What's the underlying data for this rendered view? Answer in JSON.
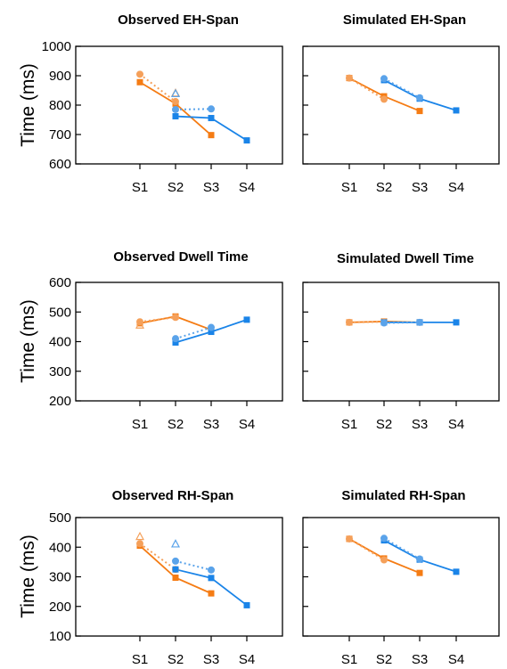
{
  "figure": {
    "row_ylabels": [
      "Time (ms)",
      "Time (ms)",
      "Time (ms)"
    ]
  },
  "colors": {
    "orange": "#f57c14",
    "orange_light": "#f5a05a",
    "blue": "#1a84e8",
    "blue_light": "#5aa3ea"
  },
  "chart_data": [
    {
      "type": "line",
      "title": "Observed EH-Span",
      "ylabel": "Time (ms)",
      "xlabel": "",
      "categories": [
        "S1",
        "S2",
        "S3",
        "S4"
      ],
      "ylim": [
        600,
        1000
      ],
      "yticks": [
        600,
        700,
        800,
        900,
        1000
      ],
      "series": [
        {
          "color": "orange",
          "marker": "square",
          "style": "solid",
          "values": [
            878,
            805,
            698,
            null
          ]
        },
        {
          "color": "orange",
          "marker": "circle",
          "style": "dotted",
          "values": [
            905,
            812,
            null,
            null
          ]
        },
        {
          "color": "orange",
          "marker": "triangle",
          "style": "none",
          "values": [
            null,
            840,
            null,
            null
          ]
        },
        {
          "color": "blue",
          "marker": "square",
          "style": "solid",
          "values": [
            null,
            762,
            756,
            680
          ]
        },
        {
          "color": "blue",
          "marker": "circle",
          "style": "dotted",
          "values": [
            null,
            785,
            787,
            null
          ]
        },
        {
          "color": "blue",
          "marker": "triangle",
          "style": "none",
          "values": [
            null,
            838,
            null,
            null
          ]
        }
      ]
    },
    {
      "type": "line",
      "title": "Simulated EH-Span",
      "xlabel": "",
      "categories": [
        "S1",
        "S2",
        "S3",
        "S4"
      ],
      "ylim": [
        600,
        1000
      ],
      "yticks": [
        600,
        700,
        800,
        900,
        1000
      ],
      "series": [
        {
          "color": "orange",
          "marker": "square",
          "style": "solid",
          "values": [
            892,
            830,
            780,
            null
          ]
        },
        {
          "color": "orange",
          "marker": "circle",
          "style": "dotted",
          "values": [
            892,
            820,
            null,
            null
          ]
        },
        {
          "color": "blue",
          "marker": "square",
          "style": "solid",
          "values": [
            null,
            885,
            822,
            782
          ]
        },
        {
          "color": "blue",
          "marker": "circle",
          "style": "dotted",
          "values": [
            null,
            890,
            825,
            null
          ]
        }
      ]
    },
    {
      "type": "line",
      "title": "Observed Dwell Time",
      "ylabel": "Time (ms)",
      "xlabel": "",
      "categories": [
        "S1",
        "S2",
        "S3",
        "S4"
      ],
      "ylim": [
        200,
        600
      ],
      "yticks": [
        200,
        300,
        400,
        500,
        600
      ],
      "series": [
        {
          "color": "orange",
          "marker": "square",
          "style": "solid",
          "values": [
            462,
            485,
            440,
            null
          ]
        },
        {
          "color": "orange",
          "marker": "circle",
          "style": "dotted",
          "values": [
            467,
            482,
            null,
            null
          ]
        },
        {
          "color": "orange",
          "marker": "triangle",
          "style": "none",
          "values": [
            455,
            null,
            null,
            null
          ]
        },
        {
          "color": "blue",
          "marker": "square",
          "style": "solid",
          "values": [
            null,
            397,
            433,
            474
          ]
        },
        {
          "color": "blue",
          "marker": "circle",
          "style": "dotted",
          "values": [
            null,
            410,
            448,
            null
          ]
        }
      ]
    },
    {
      "type": "line",
      "title": "Simulated Dwell Time",
      "xlabel": "",
      "categories": [
        "S1",
        "S2",
        "S3",
        "S4"
      ],
      "ylim": [
        200,
        600
      ],
      "yticks": [
        200,
        300,
        400,
        500,
        600
      ],
      "series": [
        {
          "color": "orange",
          "marker": "square",
          "style": "solid",
          "values": [
            465,
            468,
            465,
            null
          ]
        },
        {
          "color": "orange",
          "marker": "circle",
          "style": "dotted",
          "values": [
            465,
            467,
            null,
            null
          ]
        },
        {
          "color": "blue",
          "marker": "square",
          "style": "solid",
          "values": [
            null,
            465,
            465,
            465
          ]
        },
        {
          "color": "blue",
          "marker": "circle",
          "style": "dotted",
          "values": [
            null,
            463,
            465,
            null
          ]
        }
      ]
    },
    {
      "type": "line",
      "title": "Observed RH-Span",
      "ylabel": "Time (ms)",
      "xlabel": "",
      "categories": [
        "S1",
        "S2",
        "S3",
        "S4"
      ],
      "ylim": [
        100,
        500
      ],
      "yticks": [
        100,
        200,
        300,
        400,
        500
      ],
      "series": [
        {
          "color": "orange",
          "marker": "square",
          "style": "solid",
          "values": [
            405,
            297,
            244,
            null
          ]
        },
        {
          "color": "orange",
          "marker": "circle",
          "style": "dotted",
          "values": [
            412,
            325,
            null,
            null
          ]
        },
        {
          "color": "orange",
          "marker": "triangle",
          "style": "none",
          "values": [
            435,
            null,
            null,
            null
          ]
        },
        {
          "color": "blue",
          "marker": "square",
          "style": "solid",
          "values": [
            null,
            325,
            296,
            204
          ]
        },
        {
          "color": "blue",
          "marker": "circle",
          "style": "dotted",
          "values": [
            null,
            353,
            323,
            null
          ]
        },
        {
          "color": "blue",
          "marker": "triangle",
          "style": "none",
          "values": [
            null,
            410,
            null,
            null
          ]
        }
      ]
    },
    {
      "type": "line",
      "title": "Simulated RH-Span",
      "xlabel": "",
      "categories": [
        "S1",
        "S2",
        "S3",
        "S4"
      ],
      "ylim": [
        100,
        500
      ],
      "yticks": [
        100,
        200,
        300,
        400,
        500
      ],
      "series": [
        {
          "color": "orange",
          "marker": "square",
          "style": "solid",
          "values": [
            428,
            362,
            313,
            null
          ]
        },
        {
          "color": "orange",
          "marker": "circle",
          "style": "dotted",
          "values": [
            428,
            357,
            null,
            null
          ]
        },
        {
          "color": "blue",
          "marker": "square",
          "style": "solid",
          "values": [
            null,
            423,
            358,
            317
          ]
        },
        {
          "color": "blue",
          "marker": "circle",
          "style": "dotted",
          "values": [
            null,
            430,
            360,
            null
          ]
        }
      ]
    }
  ]
}
